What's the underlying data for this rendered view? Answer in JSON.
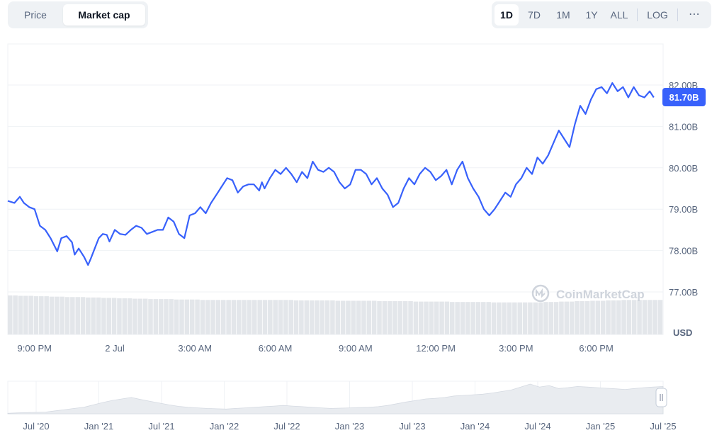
{
  "toolbar": {
    "type_options": [
      {
        "label": "Price",
        "active": false
      },
      {
        "label": "Market cap",
        "active": true
      }
    ],
    "range_options": [
      {
        "label": "1D",
        "active": true
      },
      {
        "label": "7D",
        "active": false
      },
      {
        "label": "1M",
        "active": false
      },
      {
        "label": "1Y",
        "active": false
      },
      {
        "label": "ALL",
        "active": false
      }
    ],
    "log_label": "LOG",
    "more_label": "⋯"
  },
  "watermark": "CoinMarketCap",
  "currency_label": "USD",
  "current_value_label": "81.70B",
  "colors": {
    "line": "#3861fb",
    "volume": "#e3e6ea",
    "grid": "#eff2f5",
    "axis_text": "#58667e",
    "overview_fill": "#e9ecf0"
  },
  "chart_data": {
    "type": "line",
    "title": "",
    "ylabel": "USD",
    "ylim": [
      76.5,
      82.6
    ],
    "yticks": [
      77.0,
      78.0,
      79.0,
      80.0,
      81.0,
      82.0
    ],
    "ytick_labels": [
      "77.00B",
      "78.00B",
      "79.00B",
      "80.00B",
      "81.00B",
      "82.00B"
    ],
    "x_tick_labels": [
      "9:00 PM",
      "2 Jul",
      "3:00 AM",
      "6:00 AM",
      "9:00 AM",
      "12:00 PM",
      "3:00 PM",
      "6:00 PM"
    ],
    "x_tick_hours": [
      1.0,
      4.0,
      7.0,
      10.0,
      13.0,
      16.0,
      19.0,
      22.0
    ],
    "x_range_hours": [
      0.0,
      24.5
    ],
    "series": [
      {
        "x_hours": [
          0.0,
          0.25,
          0.45,
          0.6,
          0.8,
          1.0,
          1.2,
          1.4,
          1.6,
          1.85,
          2.0,
          2.2,
          2.4,
          2.5,
          2.65,
          2.85,
          3.0,
          3.1,
          3.25,
          3.4,
          3.55,
          3.7,
          3.8,
          4.0,
          4.2,
          4.4,
          4.6,
          4.8,
          5.0,
          5.2,
          5.4,
          5.6,
          5.8,
          6.0,
          6.2,
          6.4,
          6.6,
          6.8,
          7.0,
          7.2,
          7.4,
          7.6,
          7.8,
          8.0,
          8.2,
          8.4,
          8.6,
          8.8,
          9.0,
          9.2,
          9.4,
          9.5,
          9.6,
          9.8,
          10.0,
          10.2,
          10.4,
          10.6,
          10.8,
          11.0,
          11.2,
          11.4,
          11.6,
          11.8,
          12.0,
          12.2,
          12.4,
          12.6,
          12.8,
          13.0,
          13.2,
          13.4,
          13.6,
          13.8,
          14.0,
          14.2,
          14.4,
          14.6,
          14.8,
          15.0,
          15.2,
          15.4,
          15.6,
          15.8,
          16.0,
          16.2,
          16.4,
          16.6,
          16.8,
          17.0,
          17.2,
          17.4,
          17.6,
          17.8,
          18.0,
          18.2,
          18.4,
          18.6,
          18.8,
          19.0,
          19.2,
          19.4,
          19.6,
          19.8,
          20.0,
          20.2,
          20.4,
          20.6,
          20.8,
          21.0,
          21.2,
          21.4,
          21.6,
          21.8,
          22.0,
          22.2,
          22.4,
          22.6,
          22.8,
          23.0,
          23.2,
          23.4,
          23.6,
          23.8,
          24.0,
          24.15
        ],
        "values": [
          79.2,
          79.15,
          79.3,
          79.15,
          79.05,
          79.0,
          78.6,
          78.5,
          78.3,
          77.98,
          78.3,
          78.35,
          78.2,
          77.9,
          78.05,
          77.85,
          77.65,
          77.8,
          78.05,
          78.3,
          78.4,
          78.38,
          78.22,
          78.5,
          78.4,
          78.38,
          78.5,
          78.6,
          78.55,
          78.4,
          78.45,
          78.5,
          78.5,
          78.8,
          78.7,
          78.4,
          78.3,
          78.85,
          78.9,
          79.05,
          78.9,
          79.15,
          79.35,
          79.55,
          79.75,
          79.7,
          79.4,
          79.55,
          79.6,
          79.6,
          79.45,
          79.65,
          79.5,
          79.75,
          79.95,
          79.85,
          80.0,
          79.85,
          79.65,
          79.9,
          79.75,
          80.15,
          79.95,
          79.9,
          80.0,
          79.9,
          79.65,
          79.5,
          79.6,
          79.95,
          79.95,
          79.85,
          79.6,
          79.75,
          79.5,
          79.35,
          79.05,
          79.15,
          79.5,
          79.75,
          79.6,
          79.85,
          80.0,
          79.9,
          79.7,
          79.8,
          79.95,
          79.6,
          79.95,
          80.15,
          79.75,
          79.5,
          79.3,
          79.0,
          78.85,
          79.0,
          79.2,
          79.4,
          79.3,
          79.6,
          79.75,
          80.0,
          79.85,
          80.25,
          80.1,
          80.3,
          80.6,
          80.9,
          80.7,
          80.5,
          81.05,
          81.5,
          81.3,
          81.65,
          81.9,
          81.95,
          81.8,
          82.05,
          81.85,
          81.95,
          81.7,
          81.95,
          81.75,
          81.7,
          81.85,
          81.7
        ],
        "volume_values": [
          0.95,
          0.95,
          0.94,
          0.94,
          0.94,
          0.93,
          0.93,
          0.93,
          0.92,
          0.92,
          0.92,
          0.91,
          0.91,
          0.91,
          0.91,
          0.9,
          0.9,
          0.9,
          0.89,
          0.89,
          0.89,
          0.88,
          0.88,
          0.88,
          0.87,
          0.87,
          0.87,
          0.86,
          0.86,
          0.86,
          0.86,
          0.86,
          0.85,
          0.85,
          0.85,
          0.85,
          0.85,
          0.84,
          0.84,
          0.84,
          0.84,
          0.84,
          0.84,
          0.84,
          0.84,
          0.84,
          0.84,
          0.84,
          0.84,
          0.84,
          0.84,
          0.84,
          0.84,
          0.84,
          0.84,
          0.83,
          0.83,
          0.83,
          0.83,
          0.83,
          0.83,
          0.83,
          0.83,
          0.82,
          0.82,
          0.82,
          0.82,
          0.82,
          0.82,
          0.82,
          0.82,
          0.81,
          0.81,
          0.81,
          0.81,
          0.81,
          0.81,
          0.81,
          0.8,
          0.8,
          0.8,
          0.8,
          0.8,
          0.8,
          0.8,
          0.79,
          0.79,
          0.79,
          0.79,
          0.79,
          0.79,
          0.79,
          0.79,
          0.78,
          0.78,
          0.78,
          0.78,
          0.78,
          0.78,
          0.78,
          0.78,
          0.78,
          0.78,
          0.79,
          0.79,
          0.79,
          0.8,
          0.8,
          0.8,
          0.81,
          0.81,
          0.81,
          0.82,
          0.82,
          0.82,
          0.83,
          0.83,
          0.83,
          0.84,
          0.84,
          0.84,
          0.84,
          0.84,
          0.84,
          0.84,
          0.84
        ]
      }
    ],
    "overview": {
      "x_tick_labels": [
        "Jul '20",
        "Jan '21",
        "Jul '21",
        "Jan '22",
        "Jul '22",
        "Jan '23",
        "Jul '23",
        "Jan '24",
        "Jul '24",
        "Jan '25",
        "Jul '25"
      ],
      "values": [
        0.02,
        0.03,
        0.04,
        0.05,
        0.06,
        0.1,
        0.14,
        0.18,
        0.22,
        0.3,
        0.38,
        0.45,
        0.5,
        0.55,
        0.48,
        0.42,
        0.36,
        0.3,
        0.25,
        0.22,
        0.2,
        0.18,
        0.17,
        0.16,
        0.18,
        0.2,
        0.22,
        0.24,
        0.26,
        0.28,
        0.26,
        0.24,
        0.22,
        0.2,
        0.18,
        0.19,
        0.2,
        0.21,
        0.22,
        0.24,
        0.28,
        0.34,
        0.4,
        0.45,
        0.5,
        0.52,
        0.55,
        0.6,
        0.62,
        0.64,
        0.66,
        0.7,
        0.75,
        0.8,
        0.9,
        1.0,
        0.9,
        0.95,
        0.85,
        0.88,
        0.92,
        0.9,
        0.88,
        0.86,
        0.84,
        0.82,
        0.85,
        0.88,
        0.9,
        0.92
      ]
    }
  }
}
